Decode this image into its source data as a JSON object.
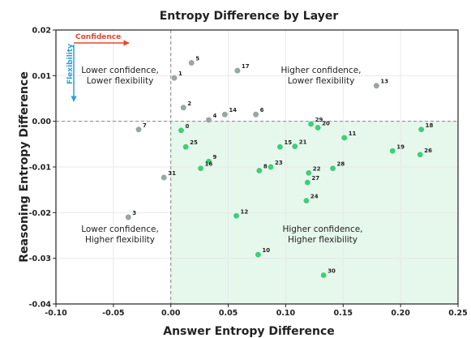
{
  "chart_data": {
    "type": "scatter",
    "title": "Entropy Difference by Layer",
    "xlabel": "Answer Entropy Difference",
    "ylabel": "Reasoning Entropy Difference",
    "xlim": [
      -0.1,
      0.25
    ],
    "ylim": [
      -0.04,
      0.02
    ],
    "x_ticks": [
      "-0.10",
      "-0.05",
      "0.00",
      "0.05",
      "0.10",
      "0.15",
      "0.20",
      "0.25"
    ],
    "x_tick_values": [
      -0.1,
      -0.05,
      0.0,
      0.05,
      0.1,
      0.15,
      0.2,
      0.25
    ],
    "y_ticks": [
      "0.02",
      "0.01",
      "0.00",
      "-0.01",
      "-0.02",
      "-0.03",
      "-0.04"
    ],
    "y_tick_values": [
      0.02,
      0.01,
      0.0,
      -0.01,
      -0.02,
      -0.03,
      -0.04
    ],
    "grid": true,
    "points": [
      {
        "label": "0",
        "x": 0.009,
        "y": -0.002,
        "group": "green"
      },
      {
        "label": "1",
        "x": 0.003,
        "y": 0.0095,
        "group": "gray"
      },
      {
        "label": "2",
        "x": 0.011,
        "y": 0.003,
        "group": "gray"
      },
      {
        "label": "3",
        "x": -0.037,
        "y": -0.021,
        "group": "gray"
      },
      {
        "label": "4",
        "x": 0.033,
        "y": 0.0003,
        "group": "gray"
      },
      {
        "label": "5",
        "x": 0.018,
        "y": 0.0128,
        "group": "gray"
      },
      {
        "label": "6",
        "x": 0.074,
        "y": 0.0015,
        "group": "gray"
      },
      {
        "label": "7",
        "x": -0.028,
        "y": -0.0018,
        "group": "gray"
      },
      {
        "label": "8",
        "x": 0.077,
        "y": -0.0108,
        "group": "green"
      },
      {
        "label": "9",
        "x": 0.033,
        "y": -0.0088,
        "group": "green"
      },
      {
        "label": "10",
        "x": 0.076,
        "y": -0.0292,
        "group": "green"
      },
      {
        "label": "11",
        "x": 0.151,
        "y": -0.0036,
        "group": "green"
      },
      {
        "label": "12",
        "x": 0.057,
        "y": -0.0207,
        "group": "green"
      },
      {
        "label": "13",
        "x": 0.179,
        "y": 0.0078,
        "group": "gray"
      },
      {
        "label": "14",
        "x": 0.047,
        "y": 0.0015,
        "group": "gray"
      },
      {
        "label": "15",
        "x": 0.095,
        "y": -0.0056,
        "group": "green"
      },
      {
        "label": "16",
        "x": 0.026,
        "y": -0.0103,
        "group": "green"
      },
      {
        "label": "17",
        "x": 0.058,
        "y": 0.0111,
        "group": "gray"
      },
      {
        "label": "18",
        "x": 0.218,
        "y": -0.0018,
        "group": "green"
      },
      {
        "label": "19",
        "x": 0.193,
        "y": -0.0065,
        "group": "green"
      },
      {
        "label": "20",
        "x": 0.128,
        "y": -0.0014,
        "group": "green"
      },
      {
        "label": "21",
        "x": 0.108,
        "y": -0.0055,
        "group": "green"
      },
      {
        "label": "22",
        "x": 0.12,
        "y": -0.0113,
        "group": "green"
      },
      {
        "label": "23",
        "x": 0.087,
        "y": -0.01,
        "group": "green"
      },
      {
        "label": "24",
        "x": 0.118,
        "y": -0.0174,
        "group": "green"
      },
      {
        "label": "25",
        "x": 0.013,
        "y": -0.0056,
        "group": "green"
      },
      {
        "label": "26",
        "x": 0.217,
        "y": -0.0073,
        "group": "green"
      },
      {
        "label": "27",
        "x": 0.119,
        "y": -0.0134,
        "group": "green"
      },
      {
        "label": "28",
        "x": 0.141,
        "y": -0.0103,
        "group": "green"
      },
      {
        "label": "29",
        "x": 0.122,
        "y": -0.0006,
        "group": "green"
      },
      {
        "label": "30",
        "x": 0.133,
        "y": -0.0337,
        "group": "green"
      },
      {
        "label": "31",
        "x": -0.006,
        "y": -0.0123,
        "group": "gray"
      }
    ],
    "quadrant_labels": {
      "top_left": [
        "Lower confidence,",
        "Lower flexibility"
      ],
      "top_right": [
        "Higher confidence,",
        "Lower flexibility"
      ],
      "bottom_left": [
        "Lower confidence,",
        "Higher flexibility"
      ],
      "bottom_right": [
        "Higher confidence,",
        "Higher flexibility"
      ]
    },
    "direction_labels": {
      "confidence": "Confidence",
      "flexibility": "Flexibility"
    },
    "colors": {
      "green": "#3ecf7a",
      "gray": "#9aa6a2",
      "quadrant_fill": "#e6f7ec",
      "confidence_arrow": "#e8452c",
      "flexibility_arrow": "#2d9fd8"
    }
  }
}
